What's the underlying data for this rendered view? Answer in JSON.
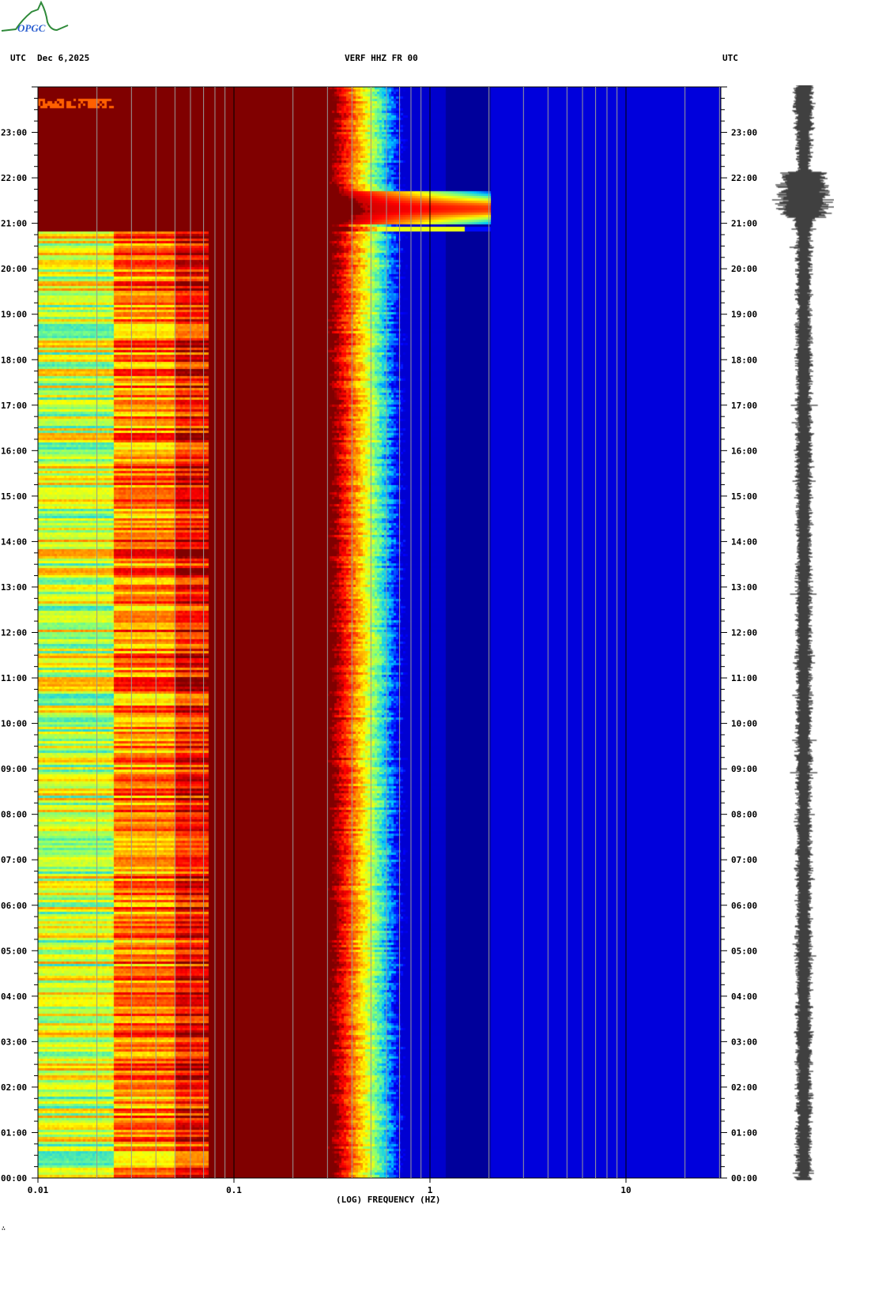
{
  "header": {
    "logo_text": "OPGC",
    "left_label": "UTC",
    "date": "Dec 6,2025",
    "station": "VERF HHZ FR 00",
    "right_label": "UTC"
  },
  "chart_data": {
    "type": "heatmap",
    "title": "VERF HHZ FR 00",
    "xlabel": "(LOG) FREQUENCY (HZ)",
    "xscale": "log",
    "xlim": [
      0.01,
      30
    ],
    "xticks": [
      "0.01",
      "0.1",
      "1",
      "10"
    ],
    "xtick_values": [
      0.01,
      0.1,
      1,
      10
    ],
    "ylabel": "UTC",
    "ylim_hours": [
      0,
      24
    ],
    "yticks": [
      "00:00",
      "01:00",
      "02:00",
      "03:00",
      "04:00",
      "05:00",
      "06:00",
      "07:00",
      "08:00",
      "09:00",
      "10:00",
      "11:00",
      "12:00",
      "13:00",
      "14:00",
      "15:00",
      "16:00",
      "17:00",
      "18:00",
      "19:00",
      "20:00",
      "21:00",
      "22:00",
      "23:00"
    ],
    "colormap": [
      "#00008b",
      "#0000ff",
      "#00c8ff",
      "#7fff7f",
      "#ffff00",
      "#ff8000",
      "#ff0000",
      "#800000"
    ],
    "notes_visible": "high-energy band below ~0.35 Hz; strong event around 21:00-21:45 UTC extending to ~2 Hz; low-frequency (0.01-0.07 Hz) data gap after 20:50 UTC",
    "event": {
      "start": "21:00",
      "end": "21:45",
      "max_freq_hz": 2
    },
    "seismogram": {
      "trace_color": "#000000",
      "event_window": [
        "21:05",
        "22:00"
      ]
    }
  },
  "footer": {
    "mark": "∴"
  }
}
